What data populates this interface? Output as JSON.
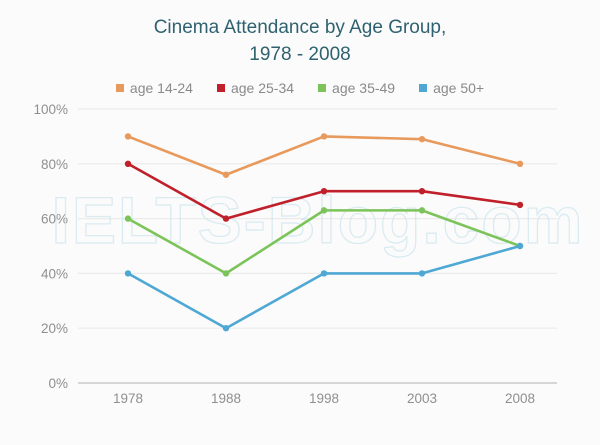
{
  "chart_data": {
    "type": "line",
    "title": "Cinema Attendance by Age Group,",
    "subtitle": "1978 - 2008",
    "xlabel": "",
    "ylabel": "",
    "categories": [
      "1978",
      "1988",
      "1998",
      "2003",
      "2008"
    ],
    "ylim": [
      0,
      100
    ],
    "yticks": [
      0,
      20,
      40,
      60,
      80,
      100
    ],
    "ytick_labels": [
      "0%",
      "20%",
      "40%",
      "60%",
      "80%",
      "100%"
    ],
    "grid": true,
    "legend_position": "top-center",
    "series": [
      {
        "name": "age 14-24",
        "color": "#e8995c",
        "values": [
          90,
          76,
          90,
          89,
          80
        ]
      },
      {
        "name": "age 25-34",
        "color": "#c0202a",
        "values": [
          80,
          60,
          70,
          70,
          65
        ]
      },
      {
        "name": "age 35-49",
        "color": "#7cc45a",
        "values": [
          60,
          40,
          63,
          63,
          50
        ]
      },
      {
        "name": "age 50+",
        "color": "#4fa8d4",
        "values": [
          40,
          20,
          40,
          40,
          50
        ]
      }
    ],
    "watermark": "IELTS-Blog.com"
  }
}
